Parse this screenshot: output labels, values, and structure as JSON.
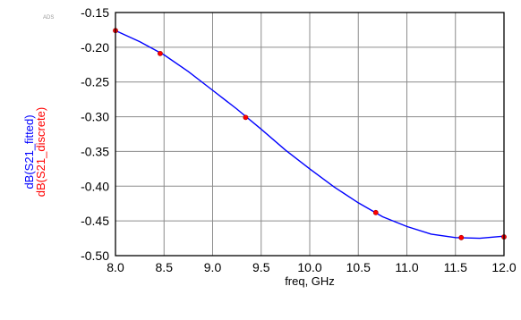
{
  "chart_data": {
    "type": "line",
    "watermark": "ADS",
    "xlabel": "freq, GHz",
    "ylabels": [
      {
        "text": "dB(S21_fitted)",
        "color": "#0000ff"
      },
      {
        "text": "dB(S21_discrete)",
        "color": "#ff0000"
      }
    ],
    "xlim": [
      8.0,
      12.0
    ],
    "ylim": [
      -0.5,
      -0.15
    ],
    "xticks": [
      "8.0",
      "8.5",
      "9.0",
      "9.5",
      "10.0",
      "10.5",
      "11.0",
      "11.5",
      "12.0"
    ],
    "yticks": [
      "-0.15",
      "-0.20",
      "-0.25",
      "-0.30",
      "-0.35",
      "-0.40",
      "-0.45",
      "-0.50"
    ],
    "grid": true,
    "series": [
      {
        "name": "dB(S21_fitted)",
        "style": "line",
        "color": "#0000ff",
        "x": [
          8.0,
          8.25,
          8.5,
          8.75,
          9.0,
          9.25,
          9.5,
          9.75,
          10.0,
          10.25,
          10.5,
          10.75,
          11.0,
          11.25,
          11.5,
          11.75,
          12.0
        ],
        "y": [
          -0.176,
          -0.192,
          -0.211,
          -0.235,
          -0.262,
          -0.289,
          -0.318,
          -0.348,
          -0.375,
          -0.401,
          -0.424,
          -0.444,
          -0.458,
          -0.469,
          -0.474,
          -0.475,
          -0.472
        ]
      },
      {
        "name": "dB(S21_discrete)",
        "style": "markers",
        "color": "#ff0000",
        "x": [
          8.0,
          8.46,
          9.34,
          10.68,
          11.56,
          12.0
        ],
        "y": [
          -0.176,
          -0.209,
          -0.301,
          -0.438,
          -0.474,
          -0.473
        ]
      }
    ]
  }
}
